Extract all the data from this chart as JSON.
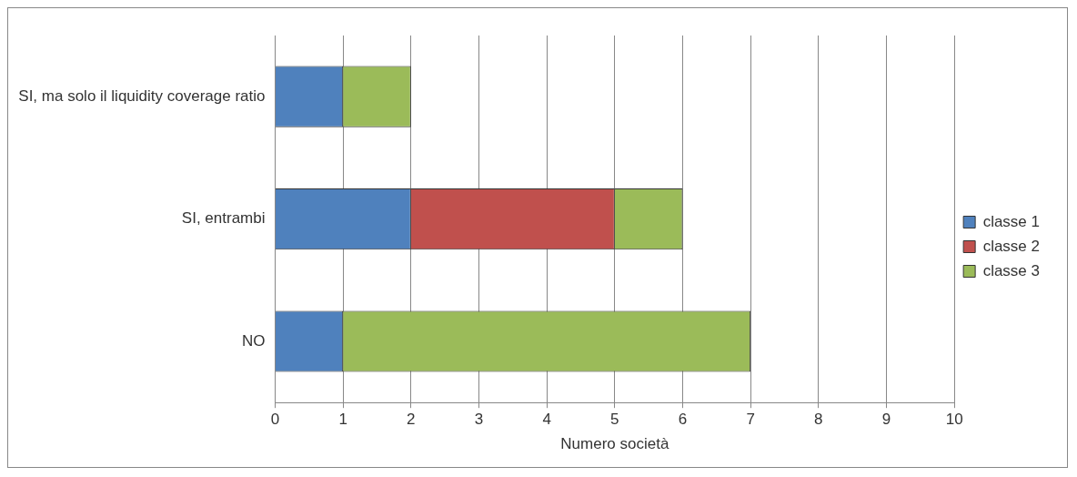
{
  "chart_data": {
    "type": "bar",
    "orientation": "horizontal",
    "stacked": true,
    "xlabel": "Numero società",
    "categories": [
      "SI, ma solo il liquidity coverage ratio",
      "SI, entrambi",
      "NO"
    ],
    "series": [
      {
        "name": "classe 1",
        "color": "#4f81bd",
        "values": [
          1,
          2,
          1
        ]
      },
      {
        "name": "classe 2",
        "color": "#c0504d",
        "values": [
          0,
          3,
          0
        ]
      },
      {
        "name": "classe 3",
        "color": "#9bbb59",
        "values": [
          1,
          1,
          6
        ]
      }
    ],
    "xlim": [
      0,
      10
    ],
    "xticks": [
      0,
      1,
      2,
      3,
      4,
      5,
      6,
      7,
      8,
      9,
      10
    ],
    "grid": "x",
    "legend": "right"
  }
}
